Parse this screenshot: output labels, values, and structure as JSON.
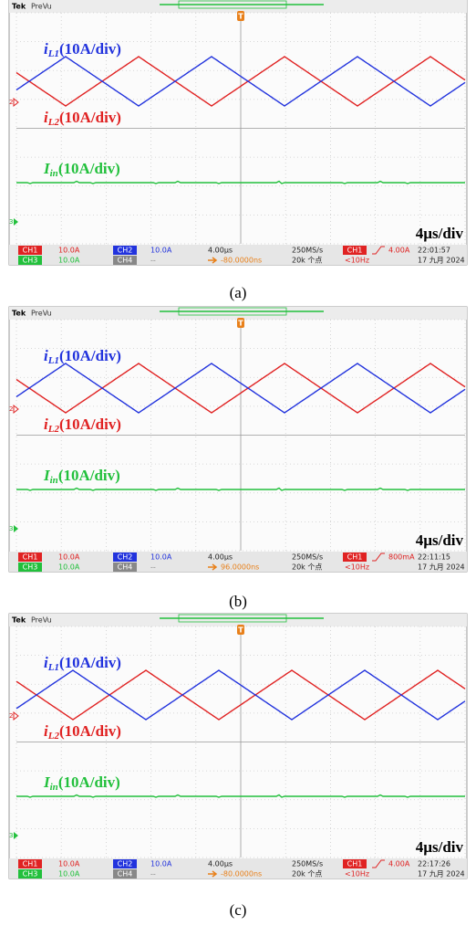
{
  "panels": [
    {
      "header": {
        "brand": "Tek",
        "mode": "PreVu"
      },
      "trace_labels": [
        {
          "symbol": "i",
          "subscript": "L1",
          "unit": "(10A/div)"
        },
        {
          "symbol": "i",
          "subscript": "L2",
          "unit": "(10A/div)"
        },
        {
          "symbol": "I",
          "subscript": "in",
          "unit": "(10A/div)"
        }
      ],
      "markers": {
        "ch2": "2",
        "ch3": "3",
        "trigger": "T"
      },
      "timebase_label": "4µs/div",
      "status": {
        "row1": [
          "CH1",
          "10.0A",
          "CH2",
          "10.0A",
          "4.00µs",
          "250MS/s",
          "CH1",
          "4.00A",
          "22:01:57"
        ],
        "row2": [
          "CH3",
          "10.0A",
          "CH4",
          "--",
          "-80.0000ns",
          "20k 个点",
          "<10Hz",
          "17 九月 2024"
        ]
      },
      "caption": "(a)"
    },
    {
      "header": {
        "brand": "Tek",
        "mode": "PreVu"
      },
      "trace_labels": [
        {
          "symbol": "i",
          "subscript": "L1",
          "unit": "(10A/div)"
        },
        {
          "symbol": "i",
          "subscript": "L2",
          "unit": "(10A/div)"
        },
        {
          "symbol": "I",
          "subscript": "in",
          "unit": "(10A/div)"
        }
      ],
      "markers": {
        "ch2": "2",
        "ch3": "3",
        "trigger": "T"
      },
      "timebase_label": "4µs/div",
      "status": {
        "row1": [
          "CH1",
          "10.0A",
          "CH2",
          "10.0A",
          "4.00µs",
          "250MS/s",
          "CH1",
          "800mA",
          "22:11:15"
        ],
        "row2": [
          "CH3",
          "10.0A",
          "CH4",
          "--",
          "96.0000ns",
          "20k 个点",
          "<10Hz",
          "17 九月 2024"
        ]
      },
      "caption": "(b)"
    },
    {
      "header": {
        "brand": "Tek",
        "mode": "PreVu"
      },
      "trace_labels": [
        {
          "symbol": "i",
          "subscript": "L1",
          "unit": "(10A/div)"
        },
        {
          "symbol": "i",
          "subscript": "L2",
          "unit": "(10A/div)"
        },
        {
          "symbol": "I",
          "subscript": "in",
          "unit": "(10A/div)"
        }
      ],
      "markers": {
        "ch2": "2",
        "ch3": "3",
        "trigger": "T"
      },
      "timebase_label": "4µs/div",
      "status": {
        "row1": [
          "CH1",
          "10.0A",
          "CH2",
          "10.0A",
          "4.00µs",
          "250MS/s",
          "CH1",
          "4.00A",
          "22:17:26"
        ],
        "row2": [
          "CH3",
          "10.0A",
          "CH4",
          "--",
          "-80.0000ns",
          "20k 个点",
          "<10Hz",
          "17 九月 2024"
        ]
      },
      "caption": "(c)"
    }
  ]
}
